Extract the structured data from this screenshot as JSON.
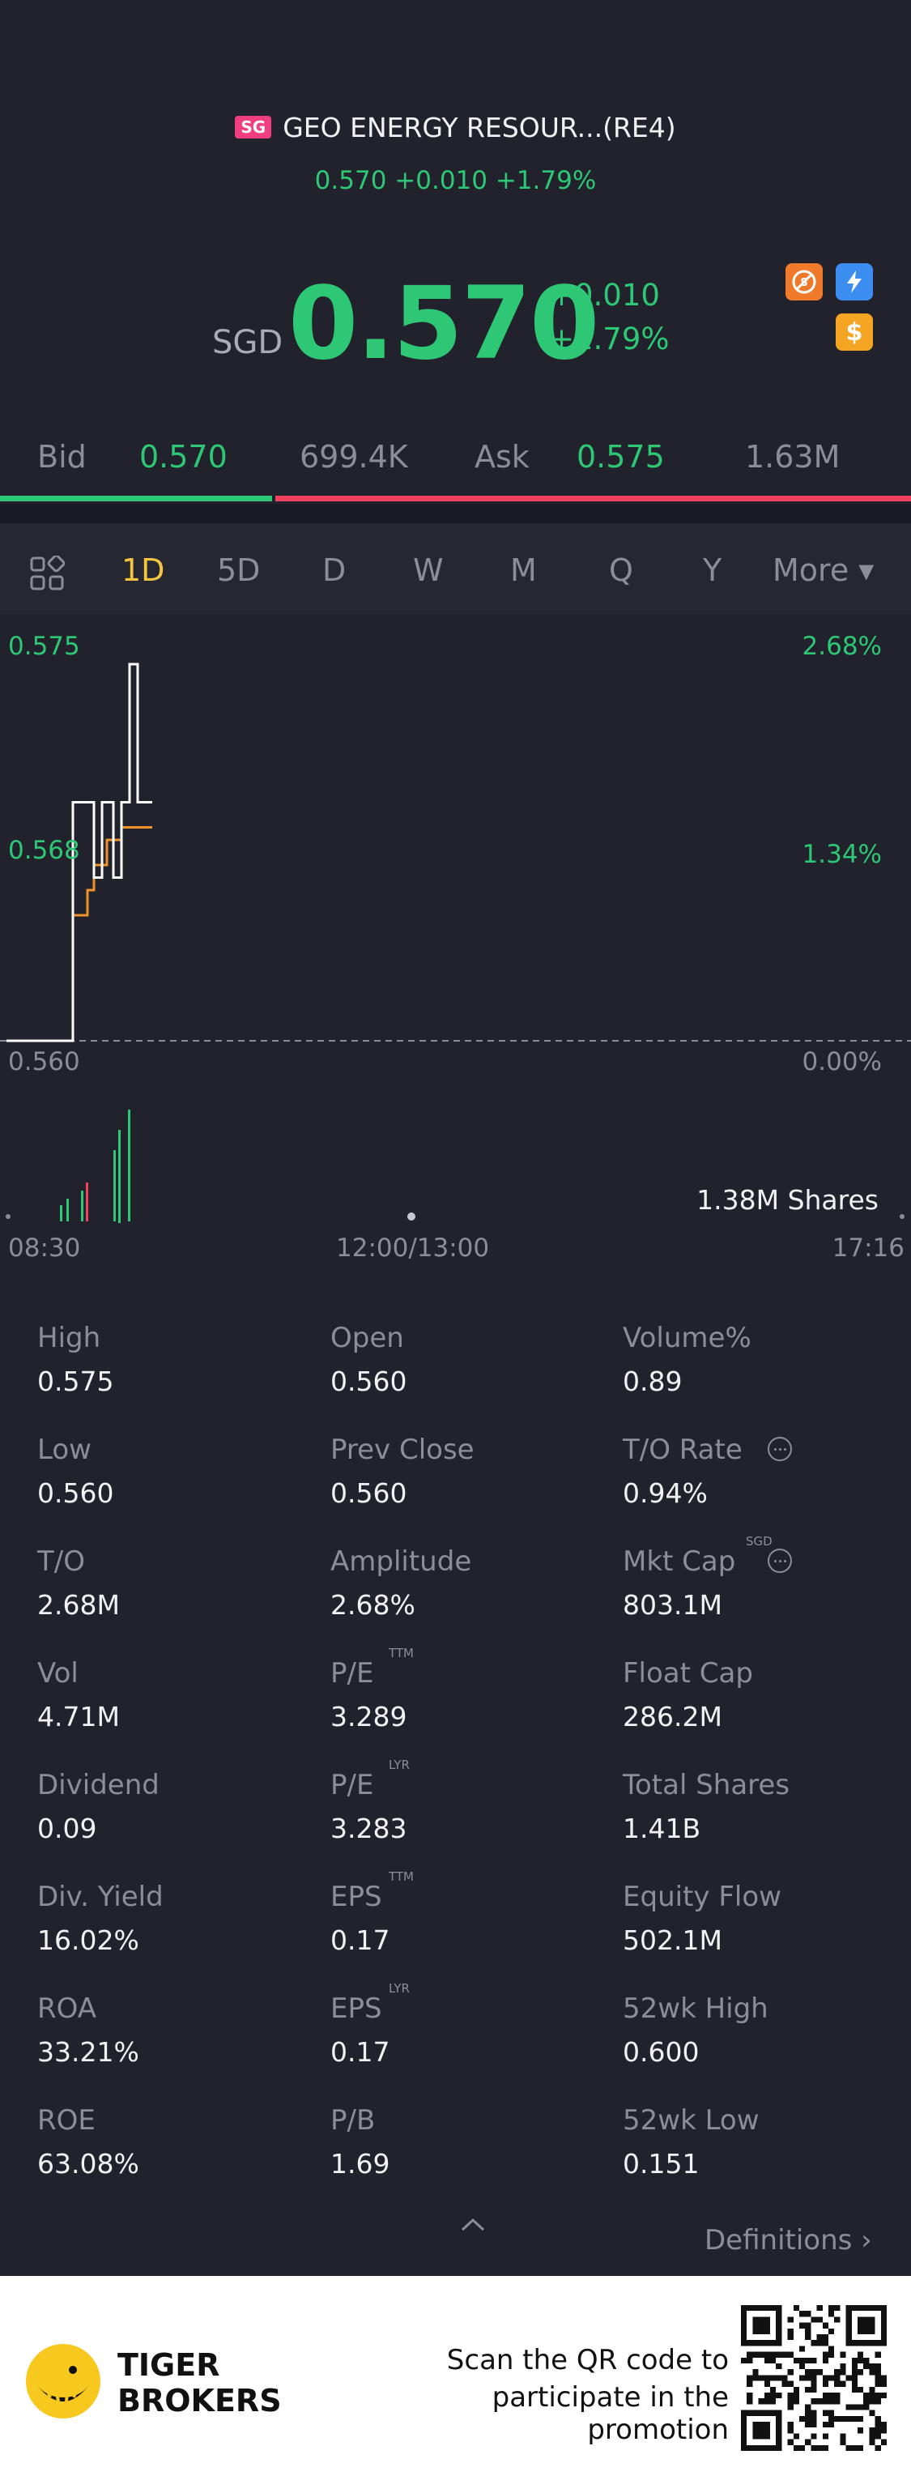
{
  "header": {
    "market_badge": "SG",
    "title": "GEO ENERGY RESOUR...(RE4)",
    "subtitle": "0.570 +0.010 +1.79%"
  },
  "quote": {
    "currency": "SGD",
    "price": "0.570",
    "change": "+0.010",
    "change_pct": "+1.79%",
    "icons": [
      "no-short-icon",
      "lightning-icon",
      "dollar-icon"
    ],
    "up_color": "#2dc775",
    "down_color": "#f0415f"
  },
  "bid_ask": {
    "bid_label": "Bid",
    "bid_price": "0.570",
    "bid_size": "699.4K",
    "ask_label": "Ask",
    "ask_price": "0.575",
    "ask_size": "1.63M",
    "bid_share": 0.3
  },
  "tabs": {
    "items": [
      "1D",
      "5D",
      "D",
      "W",
      "M",
      "Q",
      "Y",
      "More ▾"
    ],
    "active": "1D"
  },
  "chart": {
    "y_top": "0.575",
    "y_mid": "0.568",
    "y_bottom": "0.560",
    "pct_top": "2.68%",
    "pct_mid": "1.34%",
    "pct_bottom": "0.00%",
    "volume_label": "1.38M Shares",
    "time_start": "08:30",
    "time_mid": "12:00/13:00",
    "time_end": "17:16"
  },
  "chart_data": {
    "type": "line",
    "x_range": [
      "08:30",
      "17:16"
    ],
    "ylim": [
      0.56,
      0.575
    ],
    "baseline": 0.56,
    "series": [
      {
        "values": [
          0.56,
          0.56,
          0.5695,
          0.5695,
          0.5665,
          0.5695,
          0.5695,
          0.5665,
          0.5695,
          0.575,
          0.5695,
          0.5695
        ]
      },
      {
        "values": [
          0.56,
          0.56,
          0.565,
          0.566,
          0.567,
          0.567,
          0.568,
          0.568,
          0.5685,
          0.5685,
          0.5685,
          0.5685
        ]
      }
    ]
  },
  "stats": [
    [
      {
        "label": "High",
        "value": "0.575"
      },
      {
        "label": "Open",
        "value": "0.560"
      },
      {
        "label": "Volume%",
        "value": "0.89"
      }
    ],
    [
      {
        "label": "Low",
        "value": "0.560"
      },
      {
        "label": "Prev Close",
        "value": "0.560"
      },
      {
        "label": "T/O Rate",
        "value": "0.94%"
      }
    ],
    [
      {
        "label": "T/O",
        "value": "2.68M"
      },
      {
        "label": "Amplitude",
        "value": "2.68%"
      },
      {
        "label": "Mkt Cap",
        "value": "803.1M",
        "sup": "SGD"
      }
    ],
    [
      {
        "label": "Vol",
        "value": "4.71M"
      },
      {
        "label": "P/E",
        "value": "3.289",
        "sup": "TTM"
      },
      {
        "label": "Float Cap",
        "value": "286.2M"
      }
    ],
    [
      {
        "label": "Dividend",
        "value": "0.09"
      },
      {
        "label": "P/E",
        "value": "3.283",
        "sup": "LYR"
      },
      {
        "label": "Total Shares",
        "value": "1.41B"
      }
    ],
    [
      {
        "label": "Div. Yield",
        "value": "16.02%"
      },
      {
        "label": "EPS",
        "value": "0.17",
        "sup": "TTM"
      },
      {
        "label": "Equity Flow",
        "value": "502.1M"
      }
    ],
    [
      {
        "label": "ROA",
        "value": "33.21%"
      },
      {
        "label": "EPS",
        "value": "0.17",
        "sup": "LYR"
      },
      {
        "label": "52wk High",
        "value": "0.600"
      }
    ],
    [
      {
        "label": "ROE",
        "value": "63.08%"
      },
      {
        "label": "P/B",
        "value": "1.69"
      },
      {
        "label": "52wk Low",
        "value": "0.151"
      }
    ]
  ],
  "definitions_link": "Definitions",
  "footer": {
    "brand_line1": "TIGER",
    "brand_line2": "BROKERS",
    "promo_line1": "Scan the QR code to",
    "promo_line2": "participate in the promotion"
  }
}
